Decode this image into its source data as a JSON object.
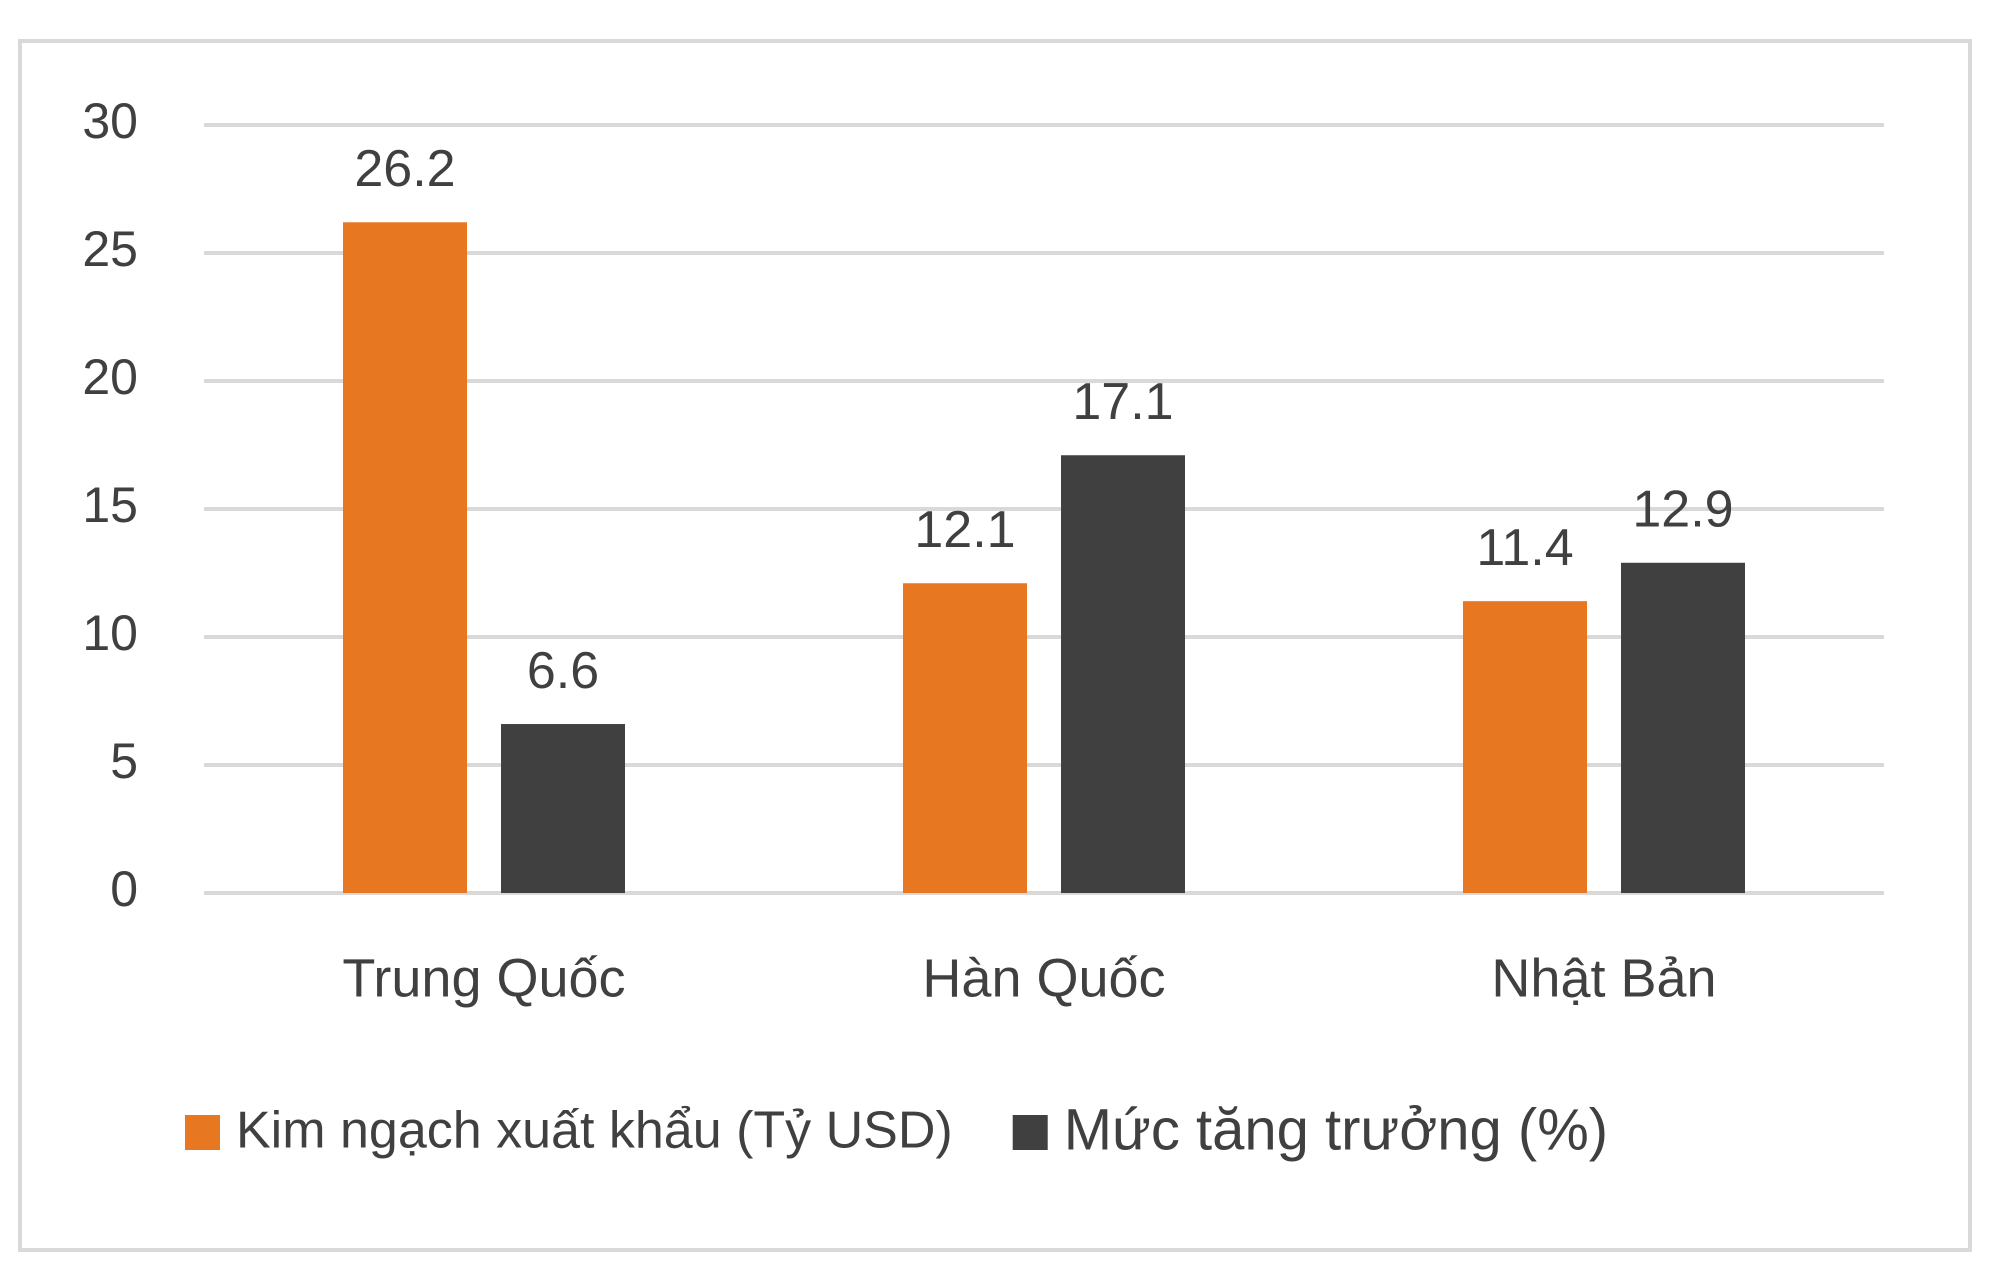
{
  "chart_data": {
    "type": "bar",
    "categories": [
      "Trung Quốc",
      "Hàn Quốc",
      "Nhật Bản"
    ],
    "series": [
      {
        "name": "Kim ngạch xuất khẩu (Tỷ USD)",
        "color": "#e87722",
        "values": [
          26.2,
          12.1,
          11.4
        ]
      },
      {
        "name": "Mức tăng trưởng (%)",
        "color": "#404040",
        "values": [
          6.6,
          17.1,
          12.9
        ]
      }
    ],
    "ylim": [
      0,
      30
    ],
    "yticks": [
      0,
      5,
      10,
      15,
      20,
      25,
      30
    ],
    "grid": true,
    "legend": "bottom"
  }
}
